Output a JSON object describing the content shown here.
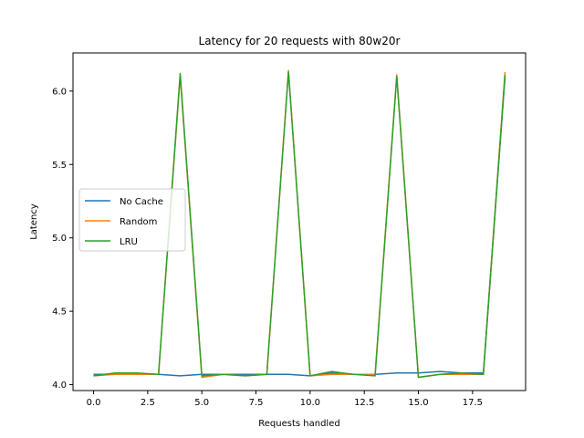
{
  "chart_data": {
    "type": "line",
    "title": "Latency for 20 requests with 80w20r",
    "xlabel": "Requests handled",
    "ylabel": "Latency",
    "xlim": [
      -0.95,
      19.95
    ],
    "ylim": [
      3.96,
      6.26
    ],
    "xticks": [
      0,
      2.5,
      5,
      7.5,
      10,
      12.5,
      15,
      17.5
    ],
    "xtick_labels": [
      "0.0",
      "2.5",
      "5.0",
      "7.5",
      "10.0",
      "12.5",
      "15.0",
      "17.5"
    ],
    "yticks": [
      4.0,
      4.5,
      5.0,
      5.5,
      6.0
    ],
    "ytick_labels": [
      "4.0",
      "4.5",
      "5.0",
      "5.5",
      "6.0"
    ],
    "grid": false,
    "legend_position": "center-left",
    "x": [
      0,
      1,
      2,
      3,
      4,
      5,
      6,
      7,
      8,
      9,
      10,
      11,
      12,
      13,
      14,
      15,
      16,
      17,
      18,
      19
    ],
    "series": [
      {
        "name": "No Cache",
        "color": "#1f77b4",
        "values": [
          4.07,
          4.07,
          4.07,
          4.07,
          4.06,
          4.07,
          4.07,
          4.07,
          4.07,
          4.07,
          4.06,
          4.08,
          4.07,
          4.07,
          4.08,
          4.08,
          4.09,
          4.08,
          4.08,
          6.1
        ]
      },
      {
        "name": "Random",
        "color": "#ff7f0e",
        "values": [
          4.06,
          4.07,
          4.07,
          4.07,
          6.1,
          4.05,
          4.07,
          4.06,
          4.07,
          6.14,
          4.06,
          4.07,
          4.07,
          4.07,
          6.11,
          4.05,
          4.07,
          4.07,
          4.07,
          6.13
        ]
      },
      {
        "name": "LRU",
        "color": "#2ca02c",
        "values": [
          4.06,
          4.08,
          4.08,
          4.07,
          6.12,
          4.06,
          4.07,
          4.06,
          4.07,
          6.13,
          4.06,
          4.09,
          4.07,
          4.06,
          6.1,
          4.05,
          4.07,
          4.08,
          4.07,
          6.11
        ]
      }
    ]
  }
}
